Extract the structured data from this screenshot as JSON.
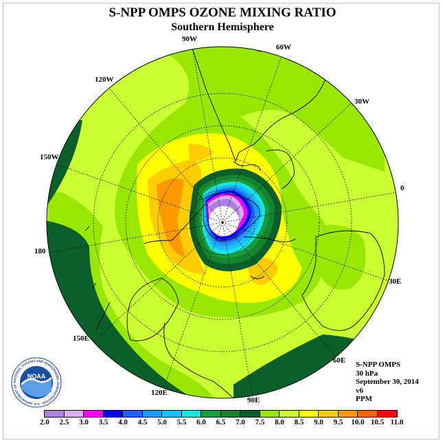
{
  "header": {
    "title": "S-NPP OMPS OZONE MIXING RATIO",
    "subtitle": "Southern Hemisphere"
  },
  "longitude_labels": [
    "90W",
    "60W",
    "30W",
    "0",
    "30E",
    "60E",
    "90E",
    "120E",
    "150E",
    "180",
    "150W",
    "120W"
  ],
  "info": {
    "instrument": "S-NPP OMPS",
    "level": "30 hPa",
    "date": "September 30, 2014",
    "version": "v6",
    "units": "PPM"
  },
  "logo": {
    "text": "NOAA",
    "ring_text": "NATIONAL OCEANIC AND ATMOSPHERIC ADMINISTRATION · U.S. DEPARTMENT OF COMMERCE"
  },
  "colorbar": {
    "labels": [
      "2.0",
      "2.5",
      "3.0",
      "3.5",
      "4.0",
      "4.5",
      "5.0",
      "5.5",
      "6.0",
      "6.5",
      "7.0",
      "7.5",
      "8.0",
      "8.5",
      "9.0",
      "9.5",
      "10.0",
      "10.5",
      "11.0"
    ],
    "colors": [
      "#b07fe6",
      "#d9aff2",
      "#ff00ff",
      "#0000ff",
      "#2060ff",
      "#1e9bff",
      "#19c0ff",
      "#18e6e6",
      "#1a9c3a",
      "#16832f",
      "#0a5f2a",
      "#99e600",
      "#ccff33",
      "#ffff00",
      "#ffcc00",
      "#ff9900",
      "#ff6600",
      "#ff0000",
      "#8b5a3c"
    ]
  }
}
